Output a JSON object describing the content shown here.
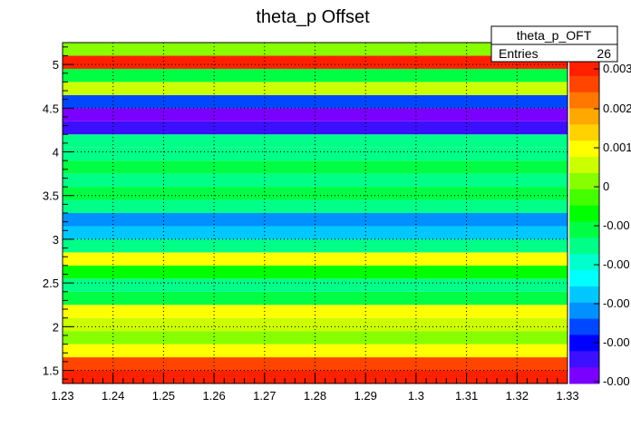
{
  "chart_data": {
    "type": "heatmap",
    "title": "theta_p Offset",
    "xlabel": "",
    "ylabel": "",
    "xlim": [
      1.23,
      1.33
    ],
    "ylim": [
      1.35,
      5.25
    ],
    "x_ticks": [
      "1.23",
      "1.24",
      "1.25",
      "1.26",
      "1.27",
      "1.28",
      "1.29",
      "1.3",
      "1.31",
      "1.32",
      "1.33"
    ],
    "y_ticks": [
      "1.5",
      "2",
      "2.5",
      "3",
      "3.5",
      "4",
      "4.5",
      "5"
    ],
    "grid": true,
    "bin_height": 0.15,
    "bands": [
      {
        "y_low": 1.35,
        "z": 0.0033
      },
      {
        "y_low": 1.5,
        "z": 0.0031
      },
      {
        "y_low": 1.65,
        "z": 0.0019
      },
      {
        "y_low": 1.8,
        "z": 0.0014
      },
      {
        "y_low": 1.95,
        "z": 0.0017
      },
      {
        "y_low": 2.1,
        "z": 0.0019
      },
      {
        "y_low": 2.25,
        "z": 0.0006
      },
      {
        "y_low": 2.4,
        "z": 0.0003
      },
      {
        "y_low": 2.55,
        "z": 0.0008
      },
      {
        "y_low": 2.7,
        "z": 0.0021
      },
      {
        "y_low": 2.85,
        "z": 0.0004
      },
      {
        "y_low": 3.0,
        "z": -0.0006
      },
      {
        "y_low": 3.15,
        "z": -0.0007
      },
      {
        "y_low": 3.3,
        "z": 0.0003
      },
      {
        "y_low": 3.45,
        "z": 0.0006
      },
      {
        "y_low": 3.6,
        "z": 0.0002
      },
      {
        "y_low": 3.75,
        "z": 0.0007
      },
      {
        "y_low": 3.9,
        "z": 0.0002
      },
      {
        "y_low": 4.05,
        "z": 0.0002
      },
      {
        "y_low": 4.2,
        "z": -0.0015
      },
      {
        "y_low": 4.35,
        "z": -0.0019
      },
      {
        "y_low": 4.5,
        "z": -0.001
      },
      {
        "y_low": 4.65,
        "z": 0.0017
      },
      {
        "y_low": 4.8,
        "z": 0.0007
      },
      {
        "y_low": 4.95,
        "z": 0.0033
      },
      {
        "y_low": 5.1,
        "z": 0.0013
      }
    ],
    "zlim": [
      -0.002,
      0.0035
    ],
    "palette": [
      "#7a00ff",
      "#3c10ff",
      "#0000ff",
      "#0048ff",
      "#0090ff",
      "#00c8ff",
      "#00ffff",
      "#00ffcc",
      "#00ff88",
      "#00ff44",
      "#00ff00",
      "#44ff00",
      "#88ff00",
      "#ccff00",
      "#ffff00",
      "#ffd200",
      "#ffa800",
      "#ff7800",
      "#ff4500",
      "#ff2000"
    ],
    "palette_labels": [
      "0.003",
      "0.002",
      "0.001",
      "0",
      "-0.00",
      "-0.00",
      "-0.00",
      "-0.00",
      "-0.00"
    ]
  },
  "stats_box": {
    "name": "theta_p_OFT",
    "entries_label": "Entries",
    "entries_value": "26"
  }
}
